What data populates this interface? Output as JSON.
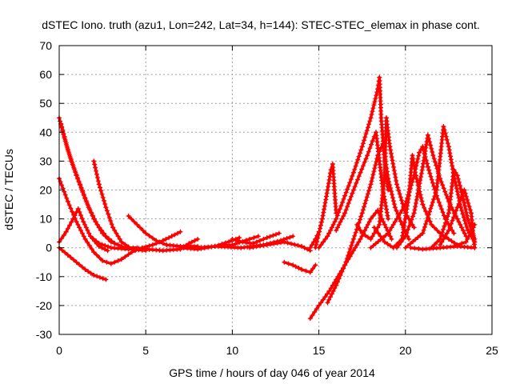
{
  "chart_data": {
    "type": "scatter",
    "title": "dSTEC Iono. truth (azu1, Lon=242, Lat=34, h=144): STEC-STEC_elemax in phase cont.",
    "xlabel": "GPS time / hours of day 046 of year 2014",
    "ylabel": "dSTEC  / TECUs",
    "xlim": [
      0,
      25
    ],
    "ylim": [
      -30,
      70
    ],
    "xticks": [
      0,
      5,
      10,
      15,
      20,
      25
    ],
    "yticks": [
      -30,
      -20,
      -10,
      0,
      10,
      20,
      30,
      40,
      50,
      60,
      70
    ],
    "grid": true,
    "marker": "+",
    "color": "#ff0000",
    "series": [
      {
        "points": [
          [
            0.0,
            45
          ],
          [
            0.3,
            38
          ],
          [
            0.7,
            30
          ],
          [
            1.2,
            22
          ],
          [
            1.7,
            14
          ],
          [
            2.2,
            8
          ],
          [
            2.7,
            4
          ],
          [
            3.2,
            1.5
          ],
          [
            3.8,
            0
          ],
          [
            4.5,
            0
          ]
        ]
      },
      {
        "points": [
          [
            0.1,
            43
          ],
          [
            0.5,
            34
          ],
          [
            1.0,
            25
          ],
          [
            1.5,
            17
          ],
          [
            2.0,
            10
          ],
          [
            2.5,
            5
          ],
          [
            3.0,
            2
          ],
          [
            3.6,
            0.5
          ]
        ]
      },
      {
        "points": [
          [
            0.0,
            24
          ],
          [
            0.5,
            16
          ],
          [
            1.0,
            9
          ],
          [
            1.5,
            3
          ],
          [
            2.0,
            -1.5
          ],
          [
            2.5,
            -4.5
          ],
          [
            3.0,
            -5.5
          ],
          [
            3.6,
            -4
          ],
          [
            4.2,
            -1.5
          ],
          [
            4.8,
            0
          ]
        ]
      },
      {
        "points": [
          [
            0.0,
            2
          ],
          [
            0.4,
            5.5
          ],
          [
            0.8,
            10
          ],
          [
            1.1,
            13.5
          ],
          [
            1.4,
            9
          ],
          [
            1.8,
            4
          ],
          [
            2.3,
            0.5
          ],
          [
            2.8,
            -1
          ]
        ]
      },
      {
        "points": [
          [
            0.0,
            0
          ],
          [
            0.5,
            -2.5
          ],
          [
            1.0,
            -5
          ],
          [
            1.5,
            -7.5
          ],
          [
            2.0,
            -9.5
          ],
          [
            2.7,
            -11
          ]
        ]
      },
      {
        "points": [
          [
            2.0,
            30
          ],
          [
            2.3,
            22
          ],
          [
            2.7,
            14
          ],
          [
            3.1,
            7
          ],
          [
            3.6,
            2
          ],
          [
            4.2,
            -0.5
          ],
          [
            5.0,
            -1
          ]
        ]
      },
      {
        "points": [
          [
            1.8,
            4
          ],
          [
            2.3,
            1.5
          ],
          [
            3.0,
            0
          ],
          [
            4.0,
            -0.5
          ],
          [
            5.0,
            0
          ]
        ]
      },
      {
        "points": [
          [
            4.0,
            11
          ],
          [
            4.5,
            8
          ],
          [
            5.0,
            5
          ],
          [
            5.6,
            2.5
          ],
          [
            6.2,
            1
          ],
          [
            7.0,
            0.5
          ],
          [
            8.0,
            0.5
          ]
        ]
      },
      {
        "points": [
          [
            4.8,
            0
          ],
          [
            5.4,
            1
          ],
          [
            6.0,
            2.5
          ],
          [
            6.5,
            4
          ],
          [
            7.0,
            5.5
          ]
        ]
      },
      {
        "points": [
          [
            5.0,
            -0.5
          ],
          [
            6.0,
            -1
          ],
          [
            7.0,
            -0.5
          ],
          [
            7.5,
            1.5
          ],
          [
            8.0,
            3
          ]
        ]
      },
      {
        "points": [
          [
            7.0,
            0
          ],
          [
            8.0,
            -0.5
          ],
          [
            9.0,
            0.5
          ],
          [
            10.0,
            2.5
          ],
          [
            10.4,
            3.5
          ]
        ]
      },
      {
        "points": [
          [
            8.0,
            0
          ],
          [
            9.0,
            0.5
          ],
          [
            10.0,
            1
          ],
          [
            11.0,
            3
          ],
          [
            11.5,
            4
          ]
        ]
      },
      {
        "points": [
          [
            10.0,
            3
          ],
          [
            10.6,
            2
          ],
          [
            11.2,
            1.5
          ],
          [
            12.0,
            3.5
          ],
          [
            12.7,
            5
          ]
        ]
      },
      {
        "points": [
          [
            9.0,
            0.5
          ],
          [
            10.5,
            0
          ],
          [
            11.8,
            1
          ],
          [
            12.8,
            2.5
          ],
          [
            13.5,
            4
          ]
        ]
      },
      {
        "points": [
          [
            11.0,
            0
          ],
          [
            12.0,
            1
          ],
          [
            13.0,
            2
          ],
          [
            14.0,
            0.5
          ],
          [
            14.5,
            -1
          ]
        ]
      },
      {
        "points": [
          [
            13.0,
            -5
          ],
          [
            13.5,
            -6
          ],
          [
            14.0,
            -7.5
          ],
          [
            14.5,
            -8.5
          ],
          [
            14.8,
            -6
          ]
        ]
      },
      {
        "points": [
          [
            14.5,
            0
          ],
          [
            14.8,
            3
          ],
          [
            15.0,
            5.5
          ]
        ]
      },
      {
        "points": [
          [
            14.5,
            -24.5
          ],
          [
            15.0,
            -20
          ],
          [
            15.6,
            -15
          ],
          [
            16.2,
            -9
          ],
          [
            16.8,
            -3
          ],
          [
            17.4,
            3
          ],
          [
            18.0,
            10
          ],
          [
            18.4,
            13
          ],
          [
            18.8,
            8
          ],
          [
            19.2,
            3
          ]
        ]
      },
      {
        "points": [
          [
            15.5,
            -19
          ],
          [
            16.0,
            -13
          ],
          [
            16.5,
            -6
          ],
          [
            17.0,
            3
          ],
          [
            17.5,
            12
          ],
          [
            18.0,
            22
          ],
          [
            18.4,
            32
          ],
          [
            18.7,
            36
          ],
          [
            19.0,
            24
          ],
          [
            19.4,
            14
          ],
          [
            19.8,
            8
          ],
          [
            20.2,
            3
          ]
        ]
      },
      {
        "points": [
          [
            14.8,
            0
          ],
          [
            15.2,
            10
          ],
          [
            15.5,
            20
          ],
          [
            15.7,
            27
          ],
          [
            15.8,
            29
          ],
          [
            15.9,
            20
          ],
          [
            16.0,
            12
          ]
        ]
      },
      {
        "points": [
          [
            15.0,
            0
          ],
          [
            15.5,
            4
          ],
          [
            16.0,
            10
          ],
          [
            16.5,
            18
          ],
          [
            17.0,
            26
          ],
          [
            17.5,
            35
          ],
          [
            18.0,
            45
          ],
          [
            18.4,
            55
          ],
          [
            18.5,
            59
          ],
          [
            18.6,
            45
          ],
          [
            18.8,
            30
          ],
          [
            19.0,
            20
          ]
        ]
      },
      {
        "points": [
          [
            16.0,
            6
          ],
          [
            16.5,
            12
          ],
          [
            17.0,
            20
          ],
          [
            17.4,
            26
          ],
          [
            17.8,
            32
          ],
          [
            18.1,
            37
          ],
          [
            18.3,
            40
          ],
          [
            18.5,
            30
          ],
          [
            18.7,
            20
          ],
          [
            19.0,
            10
          ]
        ]
      },
      {
        "points": [
          [
            17.2,
            8
          ],
          [
            17.5,
            5
          ],
          [
            18.0,
            3
          ],
          [
            18.5,
            8
          ],
          [
            18.8,
            25
          ],
          [
            18.9,
            45
          ],
          [
            19.1,
            35
          ],
          [
            19.5,
            22
          ],
          [
            20.0,
            12
          ],
          [
            20.5,
            7
          ]
        ]
      },
      {
        "points": [
          [
            18.0,
            0
          ],
          [
            19.0,
            5
          ],
          [
            20.0,
            15
          ],
          [
            20.5,
            25
          ],
          [
            20.8,
            33
          ],
          [
            21.0,
            35
          ],
          [
            21.3,
            28
          ],
          [
            21.8,
            18
          ],
          [
            22.3,
            10
          ],
          [
            22.8,
            5
          ]
        ]
      },
      {
        "points": [
          [
            18.2,
            7
          ],
          [
            18.8,
            2
          ],
          [
            19.3,
            0
          ],
          [
            19.8,
            3
          ],
          [
            20.2,
            18
          ],
          [
            20.4,
            32
          ],
          [
            20.6,
            25
          ],
          [
            21.0,
            15
          ],
          [
            21.5,
            8
          ],
          [
            22.0,
            5
          ]
        ]
      },
      {
        "points": [
          [
            19.5,
            0
          ],
          [
            20.0,
            4
          ],
          [
            20.5,
            12
          ],
          [
            21.0,
            28
          ],
          [
            21.3,
            39
          ],
          [
            21.6,
            32
          ],
          [
            22.0,
            24
          ],
          [
            22.5,
            16
          ],
          [
            23.0,
            10
          ],
          [
            23.5,
            4
          ]
        ]
      },
      {
        "points": [
          [
            20.0,
            0
          ],
          [
            21.0,
            5
          ],
          [
            21.8,
            20
          ],
          [
            22.2,
            42
          ],
          [
            22.5,
            35
          ],
          [
            22.8,
            25
          ],
          [
            23.2,
            14
          ],
          [
            23.6,
            6
          ],
          [
            24.0,
            2
          ]
        ]
      },
      {
        "points": [
          [
            21.5,
            0
          ],
          [
            22.0,
            3
          ],
          [
            22.5,
            12
          ],
          [
            22.8,
            27
          ],
          [
            23.0,
            25
          ],
          [
            23.3,
            18
          ],
          [
            23.6,
            10
          ],
          [
            24.0,
            3
          ]
        ]
      },
      {
        "points": [
          [
            22.0,
            1
          ],
          [
            22.5,
            6
          ],
          [
            23.0,
            14
          ],
          [
            23.4,
            20
          ],
          [
            23.8,
            12
          ],
          [
            24.0,
            0
          ]
        ]
      },
      {
        "points": [
          [
            22.0,
            5
          ],
          [
            22.5,
            3
          ],
          [
            23.0,
            1
          ],
          [
            23.5,
            2
          ],
          [
            24.0,
            8
          ]
        ]
      },
      {
        "points": [
          [
            20.3,
            0
          ],
          [
            21.0,
            -0.5
          ],
          [
            22.0,
            0
          ],
          [
            23.0,
            0.5
          ],
          [
            24.0,
            0
          ]
        ]
      }
    ]
  }
}
